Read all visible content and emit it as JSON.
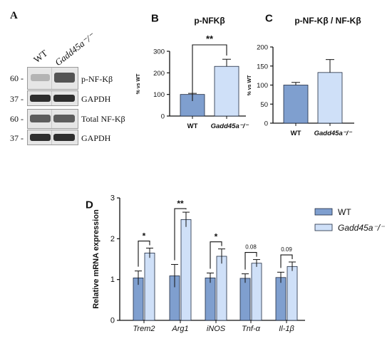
{
  "panelA": {
    "letter": "A",
    "lanes": [
      "WT",
      "Gadd45a⁻/⁻"
    ],
    "blots": [
      {
        "mw": "60 -",
        "label": "p-NF-Kβ"
      },
      {
        "mw": "37 -",
        "label": "GAPDH"
      },
      {
        "mw": "60 -",
        "label": "Total NF-Kβ"
      },
      {
        "mw": "37 -",
        "label": "GAPDH"
      }
    ]
  },
  "chart_data": [
    {
      "id": "B",
      "type": "bar",
      "letter": "B",
      "title": "p-NFKβ",
      "ylabel": "% vs WT",
      "ylim": [
        0,
        300
      ],
      "yticks": [
        0,
        100,
        200,
        300
      ],
      "categories": [
        "WT",
        "Gadd45a⁻/⁻"
      ],
      "values": [
        100,
        230
      ],
      "errors": [
        5,
        33
      ],
      "colors": [
        "#7f9fcf",
        "#cfe0f8"
      ],
      "significance": "**"
    },
    {
      "id": "C",
      "type": "bar",
      "letter": "C",
      "title": "p-NF-Kβ / NF-Kβ",
      "ylabel": "% vs WT",
      "ylim": [
        0,
        200
      ],
      "yticks": [
        0,
        50,
        100,
        150,
        200
      ],
      "categories": [
        "WT",
        "Gadd45a⁻/⁻"
      ],
      "values": [
        100,
        133
      ],
      "errors": [
        7,
        34
      ],
      "colors": [
        "#7f9fcf",
        "#cfe0f8"
      ]
    },
    {
      "id": "D",
      "type": "bar",
      "letter": "D",
      "ylabel": "Relative mRNA expression",
      "ylim": [
        0,
        3
      ],
      "yticks": [
        0,
        1,
        2,
        3
      ],
      "categories": [
        "Trem2",
        "Arg1",
        "iNOS",
        "Tnf-α",
        "Il-1β"
      ],
      "series": [
        {
          "name": "WT",
          "color": "#7f9fcf",
          "values": [
            1.04,
            1.09,
            1.04,
            1.03,
            1.05
          ],
          "errors": [
            0.17,
            0.28,
            0.12,
            0.11,
            0.13
          ]
        },
        {
          "name": "Gadd45a⁻/⁻",
          "color": "#cfe0f8",
          "values": [
            1.65,
            2.47,
            1.57,
            1.4,
            1.32
          ],
          "errors": [
            0.12,
            0.18,
            0.18,
            0.09,
            0.11
          ]
        }
      ],
      "annotations": [
        "*",
        "**",
        "*",
        "0.08",
        "0.09"
      ],
      "legend": "top-right"
    }
  ]
}
